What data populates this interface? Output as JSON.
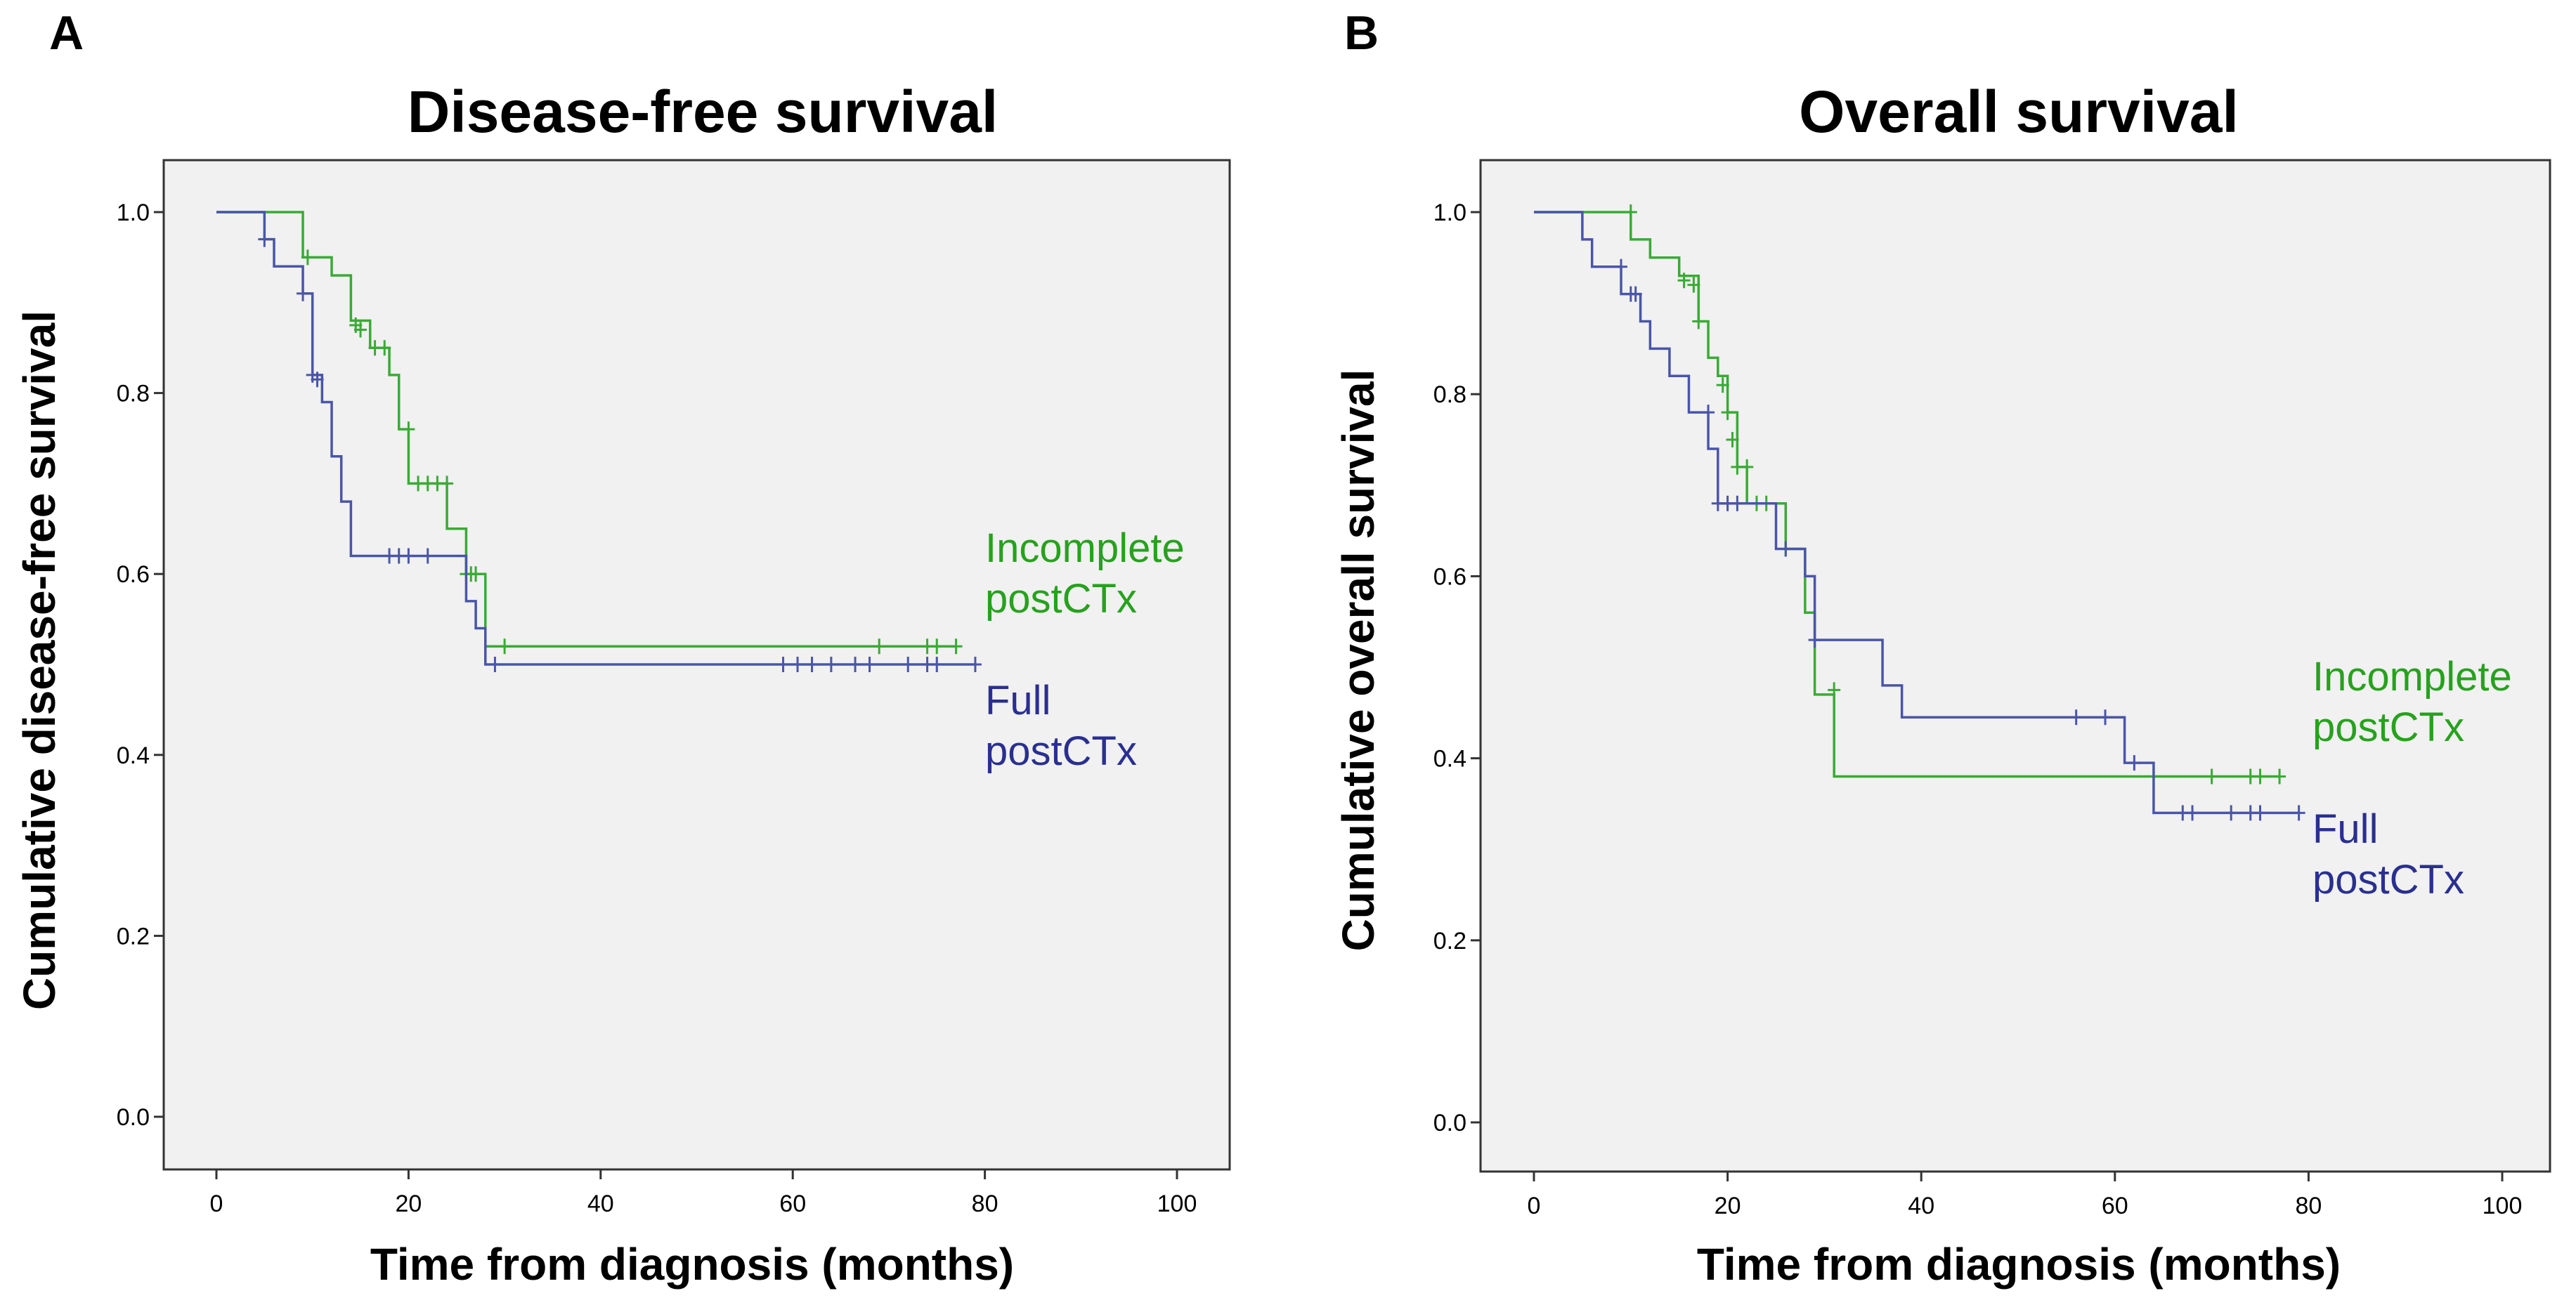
{
  "figure": {
    "colors": {
      "incomplete": "#3aaa35",
      "full": "#4a55a8",
      "legend_incomplete": "#27a11e",
      "legend_full": "#2a2f8f"
    }
  },
  "chart_data": [
    {
      "panel": "A",
      "type": "line",
      "title": "Disease-free survival",
      "xlabel": "Time from diagnosis (months)",
      "ylabel": "Cumulative disease-free survival",
      "xlim": [
        0,
        100
      ],
      "ylim": [
        0,
        1
      ],
      "xticks": [
        "0",
        "20",
        "40",
        "60",
        "80",
        "100"
      ],
      "yticks": [
        "0.0",
        "0.2",
        "0.4",
        "0.6",
        "0.8",
        "1.0"
      ],
      "legend": [
        {
          "key": "incomplete",
          "lines": [
            "Incomplete",
            "postCTx"
          ]
        },
        {
          "key": "full",
          "lines": [
            "Full",
            "postCTx"
          ]
        }
      ],
      "series": [
        {
          "name": "Incomplete postCTx",
          "key": "incomplete",
          "steps": [
            [
              0,
              1.0
            ],
            [
              9,
              0.95
            ],
            [
              12,
              0.93
            ],
            [
              14,
              0.88
            ],
            [
              16,
              0.85
            ],
            [
              18,
              0.82
            ],
            [
              19,
              0.76
            ],
            [
              20,
              0.7
            ],
            [
              24,
              0.65
            ],
            [
              26,
              0.6
            ],
            [
              28,
              0.52
            ],
            [
              77,
              0.52
            ]
          ],
          "censors": [
            [
              9.5,
              0.95
            ],
            [
              14.5,
              0.875
            ],
            [
              15,
              0.87
            ],
            [
              16.5,
              0.85
            ],
            [
              17.5,
              0.85
            ],
            [
              20,
              0.76
            ],
            [
              21,
              0.7
            ],
            [
              22,
              0.7
            ],
            [
              23,
              0.7
            ],
            [
              24,
              0.7
            ],
            [
              26,
              0.6
            ],
            [
              26.5,
              0.6
            ],
            [
              27,
              0.6
            ],
            [
              30,
              0.52
            ],
            [
              69,
              0.52
            ],
            [
              74,
              0.52
            ],
            [
              75,
              0.52
            ],
            [
              77,
              0.52
            ]
          ]
        },
        {
          "name": "Full postCTx",
          "key": "full",
          "steps": [
            [
              0,
              1.0
            ],
            [
              5,
              0.97
            ],
            [
              6,
              0.94
            ],
            [
              9,
              0.91
            ],
            [
              10,
              0.82
            ],
            [
              11,
              0.79
            ],
            [
              12,
              0.73
            ],
            [
              13,
              0.68
            ],
            [
              14,
              0.62
            ],
            [
              26,
              0.57
            ],
            [
              27,
              0.54
            ],
            [
              28,
              0.5
            ],
            [
              79,
              0.5
            ]
          ],
          "censors": [
            [
              5,
              0.97
            ],
            [
              9,
              0.91
            ],
            [
              10,
              0.82
            ],
            [
              10.5,
              0.815
            ],
            [
              18,
              0.62
            ],
            [
              19,
              0.62
            ],
            [
              20,
              0.62
            ],
            [
              22,
              0.62
            ],
            [
              29,
              0.5
            ],
            [
              59,
              0.5
            ],
            [
              60.5,
              0.5
            ],
            [
              62,
              0.5
            ],
            [
              64,
              0.5
            ],
            [
              66.5,
              0.5
            ],
            [
              68,
              0.5
            ],
            [
              72,
              0.5
            ],
            [
              74,
              0.5
            ],
            [
              75,
              0.5
            ],
            [
              79,
              0.5
            ]
          ]
        }
      ]
    },
    {
      "panel": "B",
      "type": "line",
      "title": "Overall survival",
      "xlabel": "Time from diagnosis (months)",
      "ylabel": "Cumulative overall survival",
      "xlim": [
        0,
        100
      ],
      "ylim": [
        0,
        1
      ],
      "xticks": [
        "0",
        "20",
        "40",
        "60",
        "80",
        "100"
      ],
      "yticks": [
        "0.0",
        "0.2",
        "0.4",
        "0.6",
        "0.8",
        "1.0"
      ],
      "legend": [
        {
          "key": "incomplete",
          "lines": [
            "Incomplete",
            "postCTx"
          ]
        },
        {
          "key": "full",
          "lines": [
            "Full",
            "postCTx"
          ]
        }
      ],
      "series": [
        {
          "name": "Incomplete postCTx",
          "key": "incomplete",
          "steps": [
            [
              0,
              1.0
            ],
            [
              10,
              0.97
            ],
            [
              12,
              0.95
            ],
            [
              15,
              0.93
            ],
            [
              17,
              0.88
            ],
            [
              18,
              0.84
            ],
            [
              19,
              0.82
            ],
            [
              20,
              0.78
            ],
            [
              21,
              0.72
            ],
            [
              22,
              0.68
            ],
            [
              26,
              0.63
            ],
            [
              28,
              0.56
            ],
            [
              29,
              0.47
            ],
            [
              31,
              0.38
            ],
            [
              77,
              0.38
            ]
          ],
          "censors": [
            [
              10,
              1.0
            ],
            [
              15.5,
              0.925
            ],
            [
              16.5,
              0.92
            ],
            [
              17,
              0.88
            ],
            [
              19.5,
              0.81
            ],
            [
              20,
              0.78
            ],
            [
              20.5,
              0.75
            ],
            [
              21,
              0.72
            ],
            [
              22,
              0.72
            ],
            [
              23,
              0.68
            ],
            [
              24,
              0.68
            ],
            [
              26,
              0.63
            ],
            [
              31,
              0.475
            ],
            [
              70,
              0.38
            ],
            [
              74,
              0.38
            ],
            [
              75,
              0.38
            ],
            [
              77,
              0.38
            ]
          ]
        },
        {
          "name": "Full postCTx",
          "key": "full",
          "steps": [
            [
              0,
              1.0
            ],
            [
              5,
              0.97
            ],
            [
              6,
              0.94
            ],
            [
              9,
              0.91
            ],
            [
              11,
              0.88
            ],
            [
              12,
              0.85
            ],
            [
              14,
              0.82
            ],
            [
              16,
              0.78
            ],
            [
              18,
              0.74
            ],
            [
              19,
              0.68
            ],
            [
              25,
              0.63
            ],
            [
              28,
              0.6
            ],
            [
              29,
              0.53
            ],
            [
              36,
              0.48
            ],
            [
              38,
              0.445
            ],
            [
              61,
              0.395
            ],
            [
              64,
              0.34
            ],
            [
              79,
              0.34
            ]
          ],
          "censors": [
            [
              9,
              0.94
            ],
            [
              10,
              0.91
            ],
            [
              10.5,
              0.91
            ],
            [
              18,
              0.78
            ],
            [
              19,
              0.68
            ],
            [
              20,
              0.68
            ],
            [
              21,
              0.68
            ],
            [
              26,
              0.63
            ],
            [
              29,
              0.53
            ],
            [
              56,
              0.445
            ],
            [
              59,
              0.445
            ],
            [
              62,
              0.395
            ],
            [
              67,
              0.34
            ],
            [
              68,
              0.34
            ],
            [
              72,
              0.34
            ],
            [
              74,
              0.34
            ],
            [
              75,
              0.34
            ],
            [
              79,
              0.34
            ]
          ]
        }
      ]
    }
  ]
}
